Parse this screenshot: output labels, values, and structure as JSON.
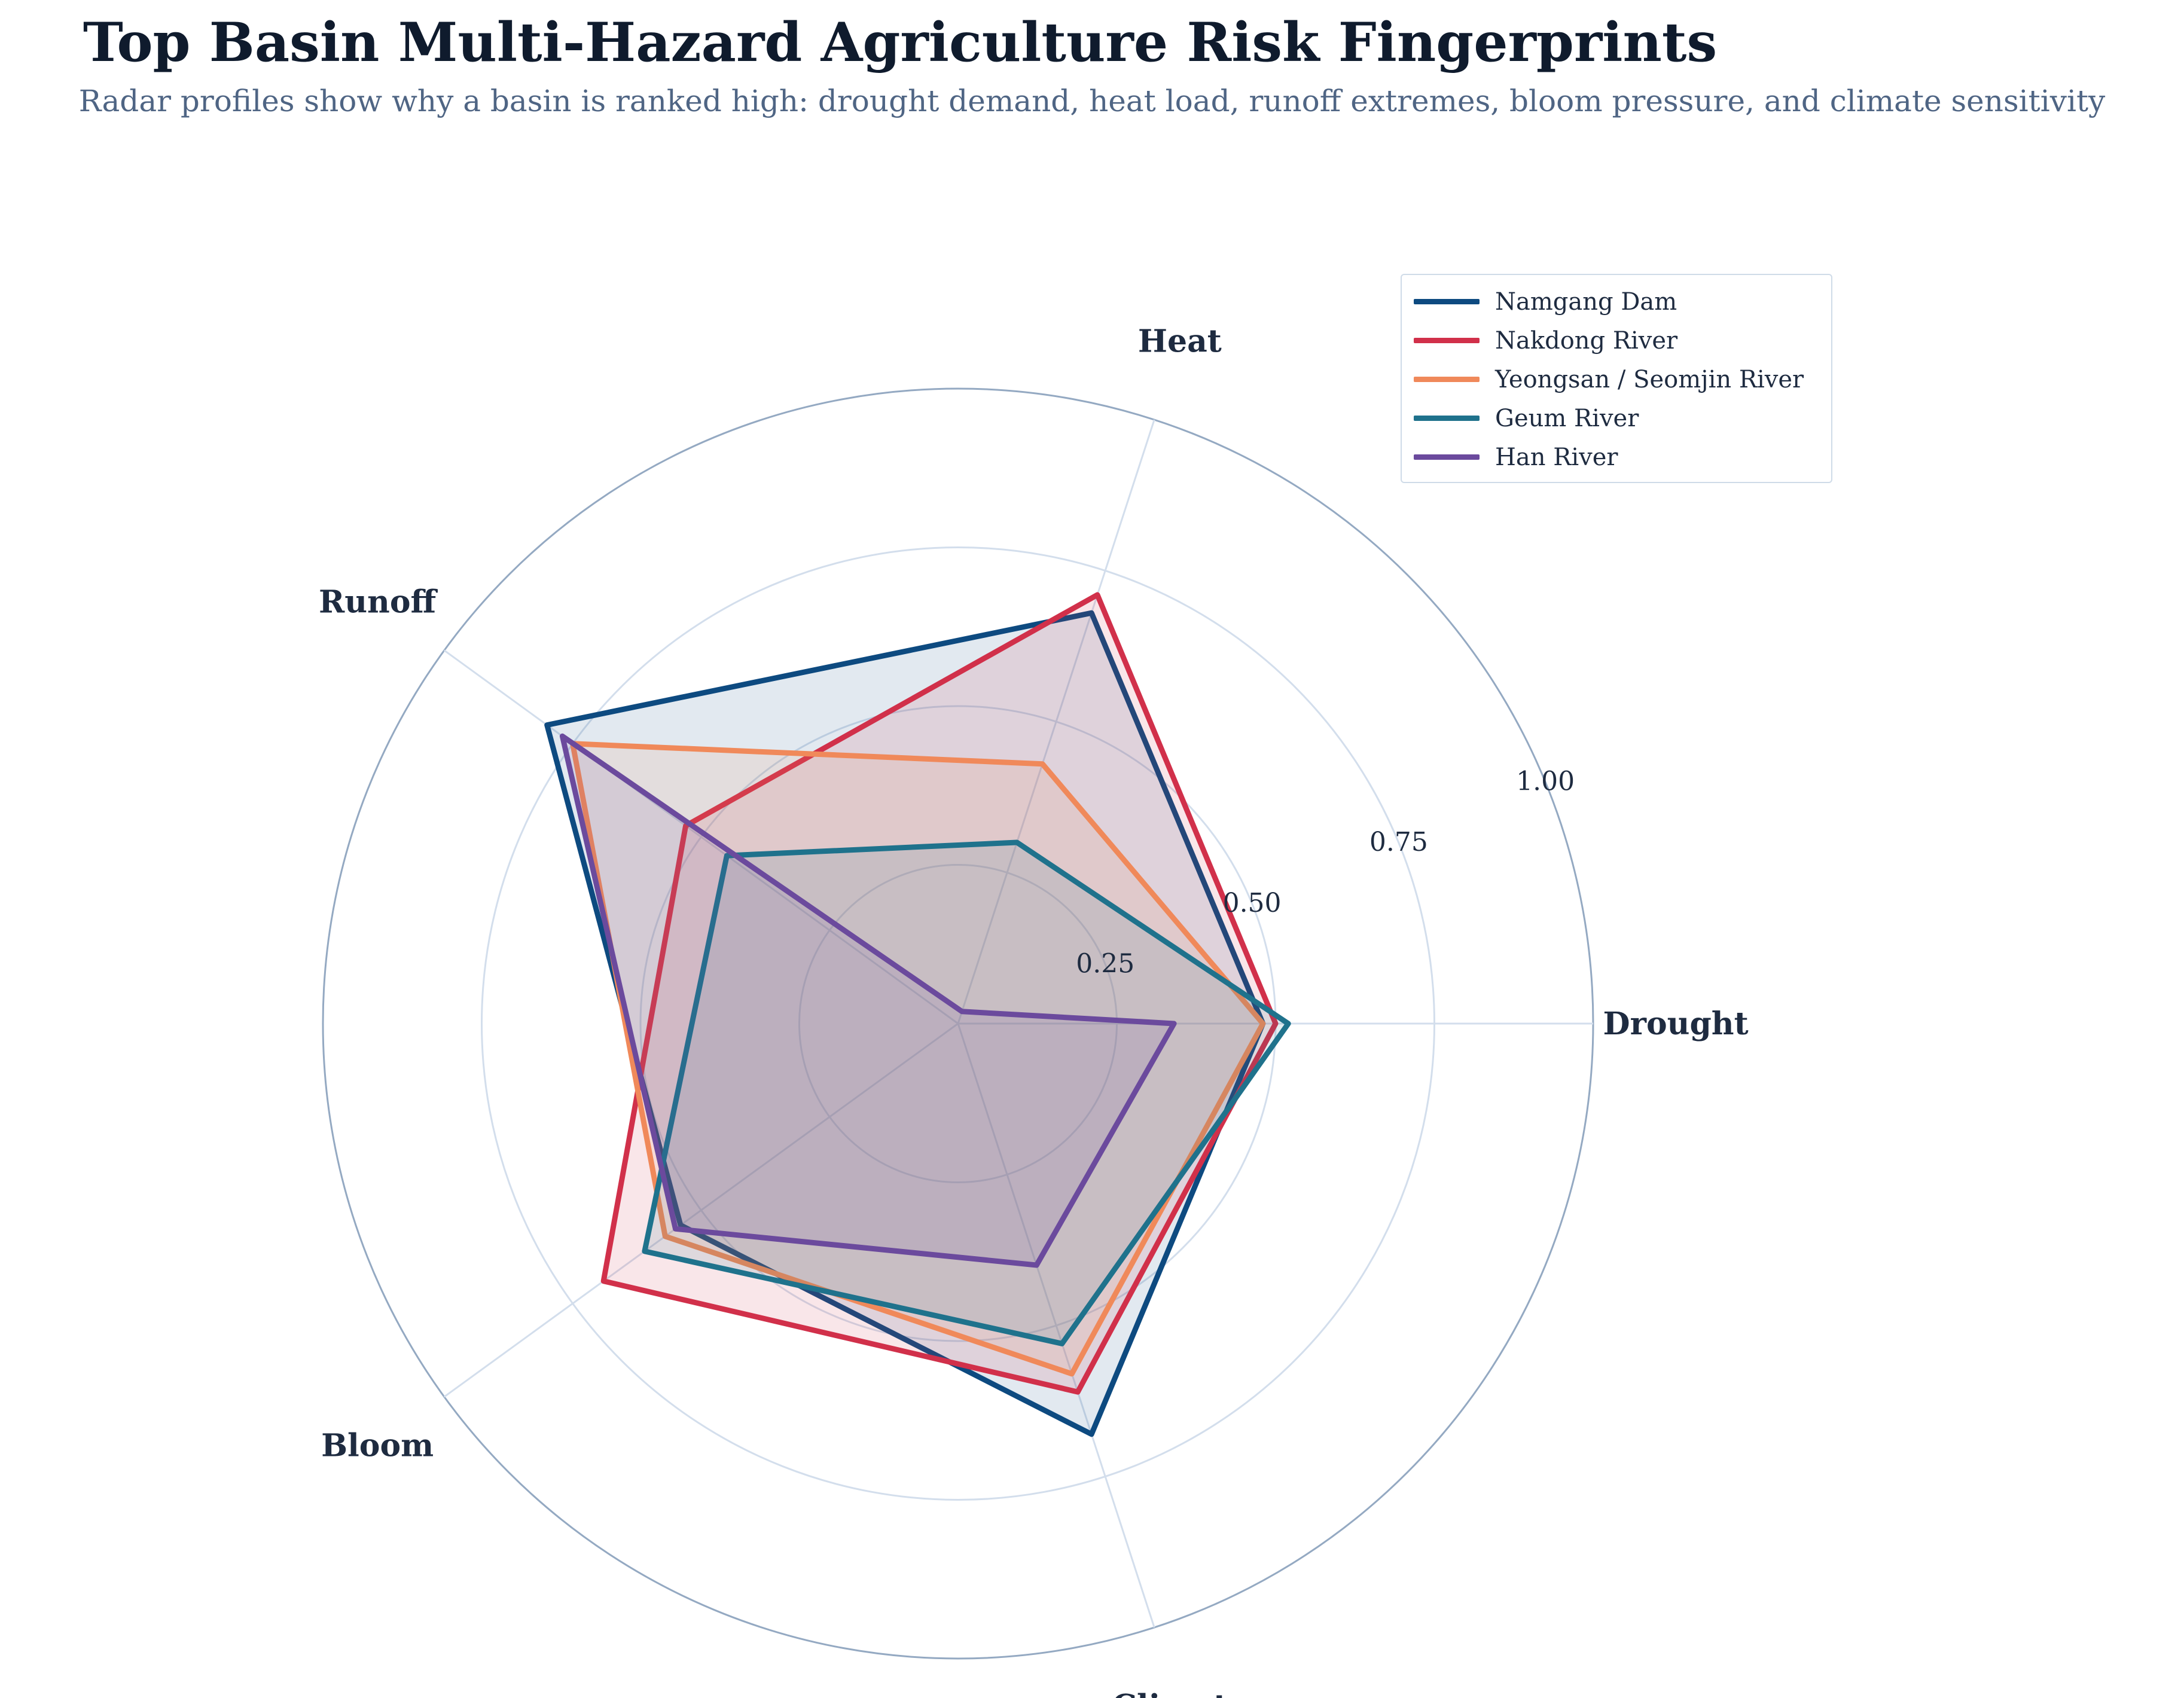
{
  "title": "Top Basin Multi-Hazard Agriculture Risk Fingerprints",
  "subtitle": "Radar profiles show why a basin is ranked high: drought demand, heat load, runoff extremes, bloom pressure, and climate sensitivity",
  "chart_data": {
    "type": "radar",
    "title": "Top Basin Multi-Hazard Agriculture Risk Fingerprints",
    "subtitle": "Radar profiles show why a basin is ranked high: drought demand, heat load, runoff extremes, bloom pressure, and climate sensitivity",
    "axes": [
      "Drought",
      "Heat",
      "Runoff",
      "Bloom",
      "Climate"
    ],
    "rlim": [
      0,
      1
    ],
    "rticks": [
      "0.25",
      "0.50",
      "0.75",
      "1.00"
    ],
    "rtick_values": [
      0.25,
      0.5,
      0.75,
      1.0
    ],
    "grid": true,
    "legend_position": "top-right",
    "series": [
      {
        "name": "Namgang Dam",
        "color": "#0d4a80",
        "values": [
          0.48,
          0.68,
          0.8,
          0.54,
          0.68
        ]
      },
      {
        "name": "Nakdong River",
        "color": "#d1304a",
        "values": [
          0.5,
          0.71,
          0.53,
          0.69,
          0.61
        ]
      },
      {
        "name": "Yeongsan / Seomjin River",
        "color": "#f0895a",
        "values": [
          0.48,
          0.43,
          0.75,
          0.57,
          0.58
        ]
      },
      {
        "name": "Geum River",
        "color": "#1f728c",
        "values": [
          0.52,
          0.3,
          0.45,
          0.61,
          0.53
        ]
      },
      {
        "name": "Han River",
        "color": "#6b4a9d",
        "values": [
          0.34,
          0.02,
          0.77,
          0.55,
          0.4
        ]
      }
    ]
  }
}
